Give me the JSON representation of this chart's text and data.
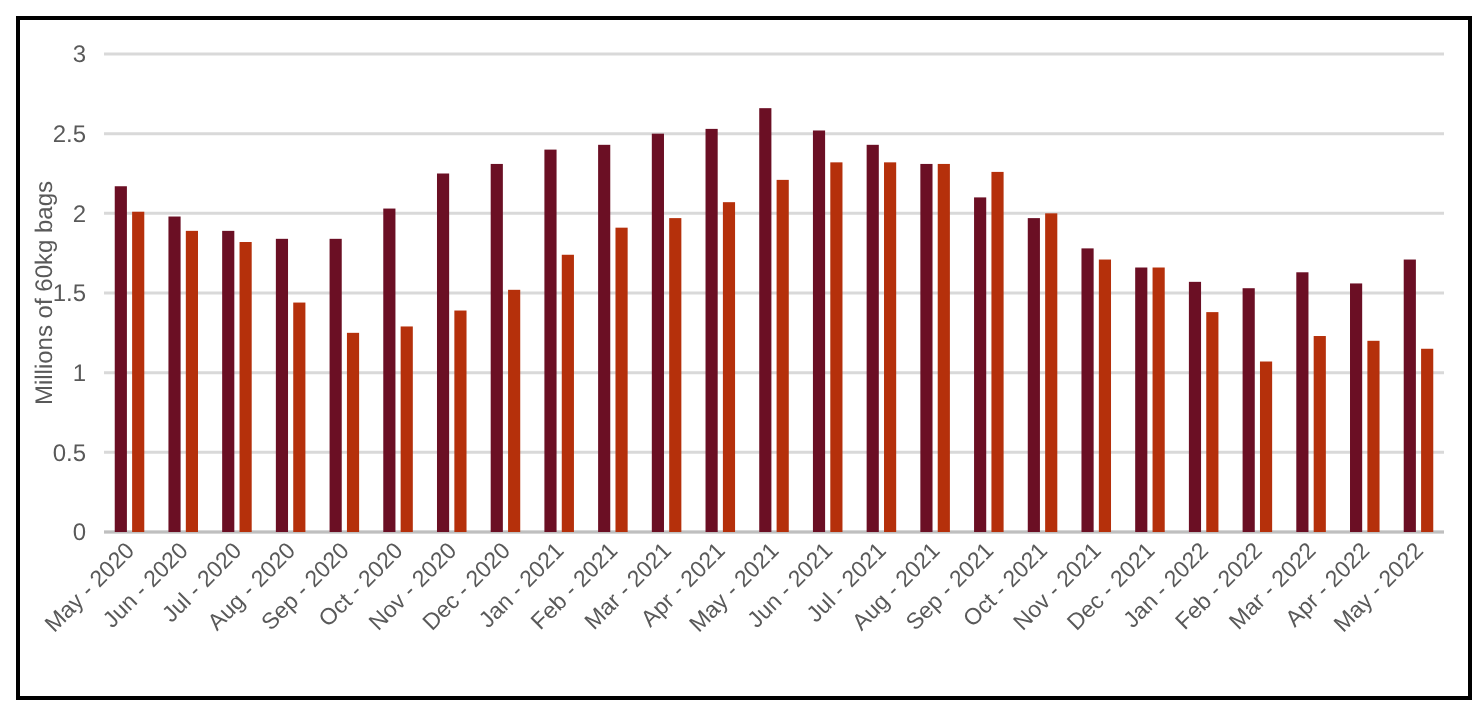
{
  "chart_data": {
    "type": "bar",
    "ylabel": "Millions of 60kg bags",
    "categories": [
      "May - 2020",
      "Jun - 2020",
      "Jul - 2020",
      "Aug - 2020",
      "Sep - 2020",
      "Oct - 2020",
      "Nov - 2020",
      "Dec - 2020",
      "Jan - 2021",
      "Feb - 2021",
      "Mar - 2021",
      "Apr - 2021",
      "May - 2021",
      "Jun - 2021",
      "Jul - 2021",
      "Aug - 2021",
      "Sep - 2021",
      "Oct - 2021",
      "Nov - 2021",
      "Dec - 2021",
      "Jan - 2022",
      "Feb - 2022",
      "Mar - 2022",
      "Apr - 2022",
      "May - 2022"
    ],
    "series": [
      {
        "color": "#6b0f24",
        "values": [
          2.17,
          1.98,
          1.89,
          1.84,
          1.84,
          2.03,
          2.25,
          2.31,
          2.4,
          2.43,
          2.5,
          2.53,
          2.66,
          2.52,
          2.43,
          2.31,
          2.1,
          1.97,
          1.78,
          1.66,
          1.57,
          1.53,
          1.63,
          1.56,
          1.71
        ]
      },
      {
        "color": "#b5300b",
        "values": [
          2.01,
          1.89,
          1.82,
          1.44,
          1.25,
          1.29,
          1.39,
          1.52,
          1.74,
          1.91,
          1.97,
          2.07,
          2.21,
          2.32,
          2.32,
          2.31,
          2.26,
          2,
          1.71,
          1.66,
          1.38,
          1.07,
          1.23,
          1.2,
          1.15
        ]
      }
    ],
    "ylim": [
      0,
      3
    ],
    "yticks": [
      0,
      0.5,
      1,
      1.5,
      2,
      2.5,
      3
    ],
    "grid": "y",
    "legend": false
  }
}
